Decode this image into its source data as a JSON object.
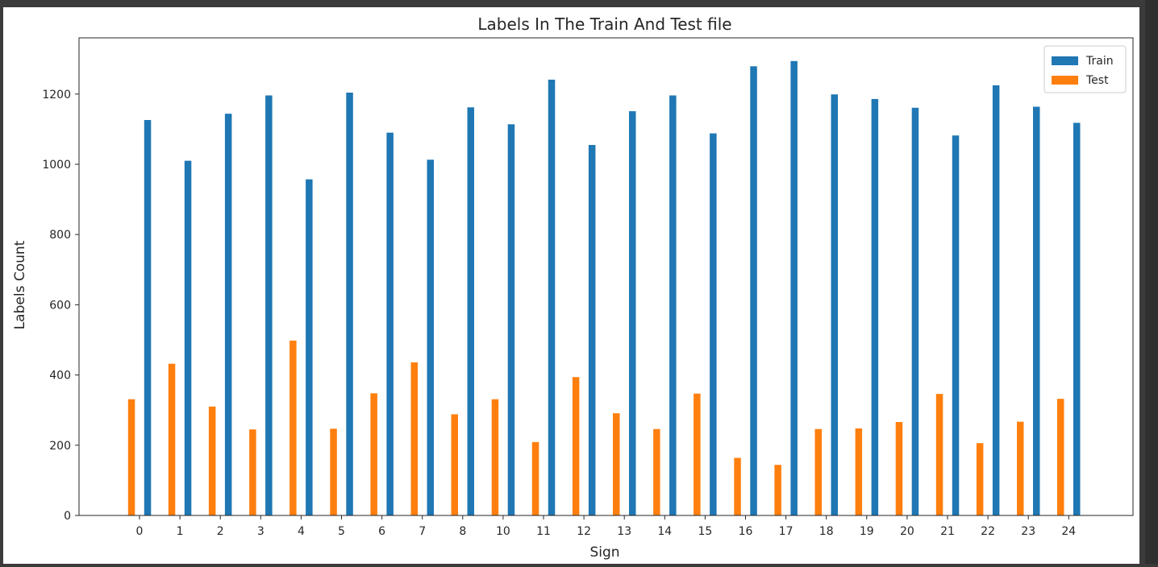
{
  "chart_data": {
    "type": "bar",
    "title": "Labels In The Train And Test file",
    "xlabel": "Sign",
    "ylabel": "Labels Count",
    "categories": [
      "0",
      "1",
      "2",
      "3",
      "4",
      "5",
      "6",
      "7",
      "8",
      "10",
      "11",
      "12",
      "13",
      "14",
      "15",
      "16",
      "17",
      "18",
      "19",
      "20",
      "21",
      "22",
      "23",
      "24"
    ],
    "series": [
      {
        "name": "Train",
        "color": "#1f77b4",
        "values": [
          1126,
          1010,
          1144,
          1196,
          957,
          1204,
          1090,
          1013,
          1162,
          1114,
          1241,
          1055,
          1151,
          1196,
          1088,
          1279,
          1294,
          1199,
          1186,
          1161,
          1082,
          1225,
          1164,
          1118
        ]
      },
      {
        "name": "Test",
        "color": "#ff7f0e",
        "values": [
          331,
          432,
          310,
          245,
          498,
          247,
          348,
          436,
          288,
          331,
          209,
          394,
          291,
          246,
          347,
          164,
          144,
          246,
          248,
          266,
          346,
          206,
          267,
          332
        ]
      }
    ],
    "yticks": [
      0,
      200,
      400,
      600,
      800,
      1000,
      1200
    ],
    "ylim": [
      0,
      1360
    ],
    "grid": false,
    "legend": "top-right"
  }
}
